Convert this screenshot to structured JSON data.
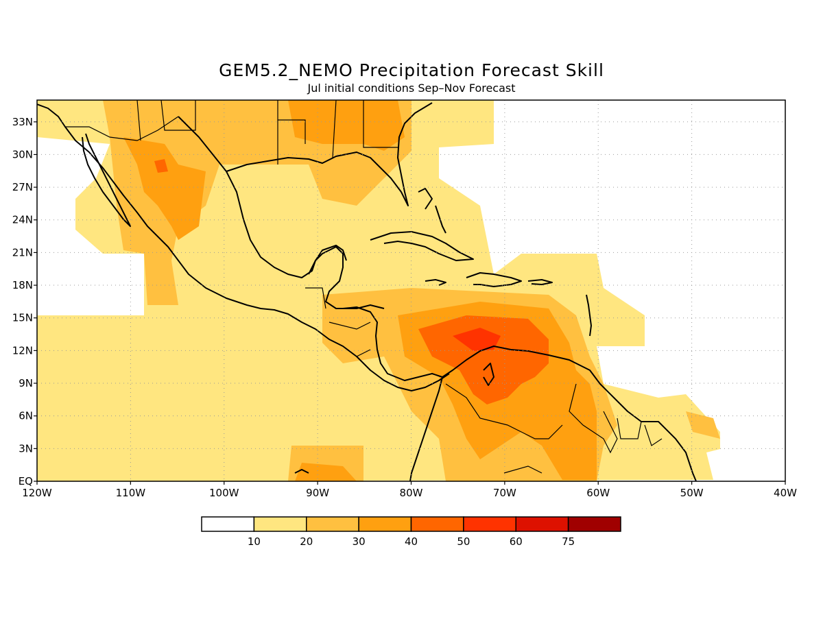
{
  "title": "GEM5.2_NEMO Precipitation Forecast Skill",
  "subtitle": "Jul initial conditions  Sep–Nov Forecast",
  "map": {
    "lon_range": [
      -120,
      -40
    ],
    "lat_range": [
      0,
      35
    ],
    "lon_ticks": [
      {
        "value": -120,
        "label": "120W"
      },
      {
        "value": -110,
        "label": "110W"
      },
      {
        "value": -100,
        "label": "100W"
      },
      {
        "value": -90,
        "label": "90W"
      },
      {
        "value": -80,
        "label": "80W"
      },
      {
        "value": -70,
        "label": "70W"
      },
      {
        "value": -60,
        "label": "60W"
      },
      {
        "value": -50,
        "label": "50W"
      },
      {
        "value": -40,
        "label": "40W"
      }
    ],
    "lat_ticks": [
      {
        "value": 0,
        "label": "EQ"
      },
      {
        "value": 3,
        "label": "3N"
      },
      {
        "value": 6,
        "label": "6N"
      },
      {
        "value": 9,
        "label": "9N"
      },
      {
        "value": 12,
        "label": "12N"
      },
      {
        "value": 15,
        "label": "15N"
      },
      {
        "value": 18,
        "label": "18N"
      },
      {
        "value": 21,
        "label": "21N"
      },
      {
        "value": 24,
        "label": "24N"
      },
      {
        "value": 27,
        "label": "27N"
      },
      {
        "value": 30,
        "label": "30N"
      },
      {
        "value": 33,
        "label": "33N"
      }
    ],
    "grid": "dotted"
  },
  "legend": {
    "bins": [
      {
        "color": "#ffffff"
      },
      {
        "color": "#ffe680"
      },
      {
        "color": "#ffc040"
      },
      {
        "color": "#ffa010"
      },
      {
        "color": "#ff6600"
      },
      {
        "color": "#ff3300"
      },
      {
        "color": "#dd1100"
      },
      {
        "color": "#a00000"
      }
    ],
    "labels": [
      "10",
      "20",
      "30",
      "40",
      "50",
      "60",
      "75"
    ]
  },
  "colors": {
    "c1": "#ffe680",
    "c2": "#ffc040",
    "c3": "#ffa010",
    "c4": "#ff6600",
    "c5": "#ff3300"
  }
}
